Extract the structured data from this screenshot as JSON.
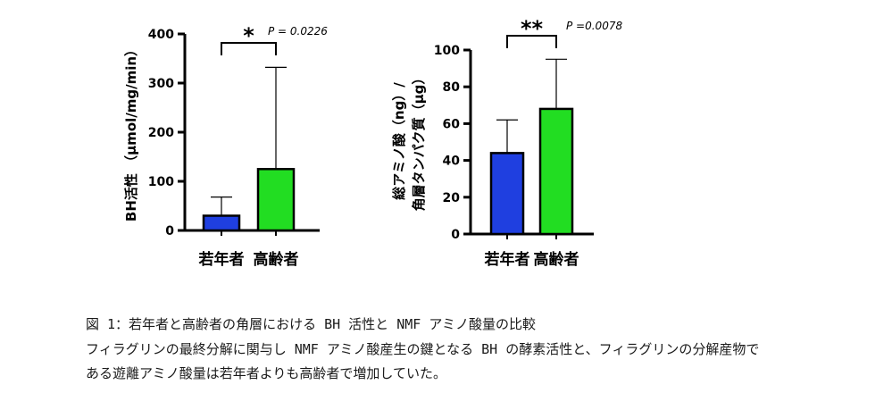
{
  "chart_data": [
    {
      "type": "bar",
      "categories": [
        "若年者",
        "高齢者"
      ],
      "values": [
        30,
        125
      ],
      "error_upper": [
        68,
        332
      ],
      "colors": [
        "#1f3fe0",
        "#22dd22"
      ],
      "ylabel": "BH活性 （μmol/mg/min）",
      "ylim": [
        0,
        400
      ],
      "yticks": [
        "0",
        "100",
        "200",
        "300",
        "400"
      ],
      "significance": {
        "stars": "*",
        "p_label": "P = 0.0226"
      }
    },
    {
      "type": "bar",
      "categories": [
        "若年者",
        "高齢者"
      ],
      "values": [
        44,
        68
      ],
      "error_upper": [
        62,
        95
      ],
      "colors": [
        "#1f3fe0",
        "#22dd22"
      ],
      "ylabel_line1": "総アミノ酸（ng）/",
      "ylabel_line2": "角層タンパク質（μg）",
      "ylim": [
        0,
        100
      ],
      "yticks": [
        "0",
        "20",
        "40",
        "60",
        "80",
        "100"
      ],
      "significance": {
        "stars": "**",
        "p_label": "P =0.0078"
      }
    }
  ],
  "caption": {
    "title": "図 1：若年者と高齢者の角層における BH 活性と NMF アミノ酸量の比較",
    "line2": "フィラグリンの最終分解に関与し NMF アミノ酸産生の鍵となる BH の酵素活性と、フィラグリンの分解産物で",
    "line3": "ある遊離アミノ酸量は若年者よりも高齢者で増加していた。"
  }
}
